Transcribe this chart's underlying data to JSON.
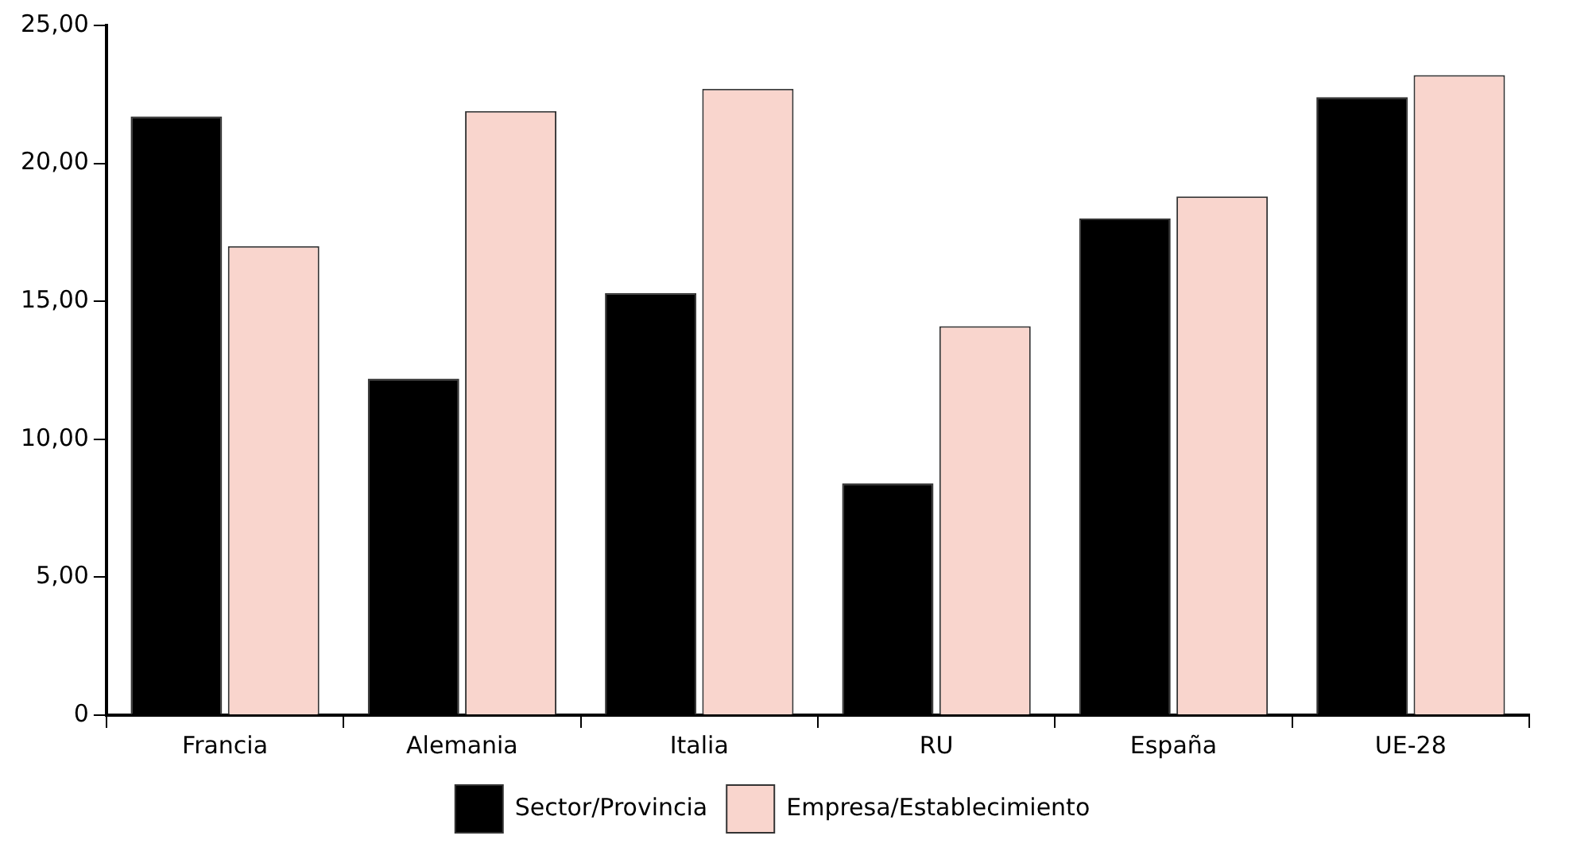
{
  "chart_data": {
    "type": "bar",
    "categories": [
      "Francia",
      "Alemania",
      "Italia",
      "RU",
      "España",
      "UE-28"
    ],
    "series": [
      {
        "name": "Sector/Provincia",
        "color": "#000000",
        "values": [
          21.7,
          12.2,
          15.3,
          8.4,
          18.0,
          22.4
        ]
      },
      {
        "name": "Empresa/Establecimiento",
        "color": "#f9d5cd",
        "values": [
          17.0,
          21.9,
          22.7,
          14.1,
          18.8,
          23.2
        ]
      }
    ],
    "ylim": [
      0,
      25
    ],
    "yticks": [
      {
        "value": 0,
        "label": "0"
      },
      {
        "value": 5,
        "label": "5,00"
      },
      {
        "value": 10,
        "label": "10,00"
      },
      {
        "value": 15,
        "label": "15,00"
      },
      {
        "value": 20,
        "label": "20,00"
      },
      {
        "value": 25,
        "label": "25,00"
      }
    ],
    "grid": false,
    "legend": "bottom"
  }
}
